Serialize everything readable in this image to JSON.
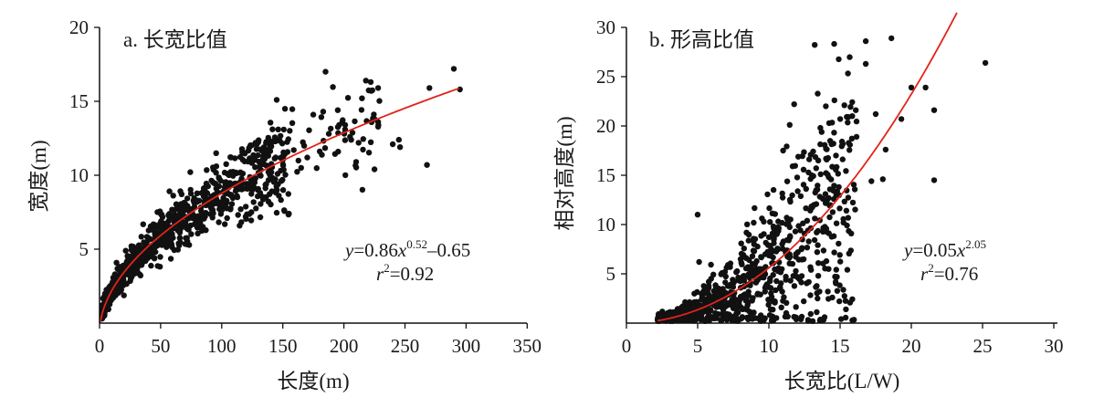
{
  "chart_data": [
    {
      "type": "scatter",
      "title": "a. 长宽比值",
      "xlabel": "长度(m)",
      "ylabel": "宽度(m)",
      "xlim": [
        0,
        350
      ],
      "ylim": [
        0,
        20
      ],
      "xticks": [
        "0",
        "50",
        "100",
        "150",
        "200",
        "250",
        "300",
        "350"
      ],
      "yticks": [
        "5",
        "10",
        "15",
        "20"
      ],
      "fit": {
        "a": 0.86,
        "b": 0.52,
        "c": -0.65,
        "equation": "y=0.86x^0.52−0.65",
        "r2": "r²=0.92"
      },
      "equation_parts": {
        "var": "y",
        "eq": "=0.86",
        "x": "x",
        "exp": "0.52",
        "tail": "–0.65"
      },
      "r2_parts": {
        "var": "r",
        "exp": "2",
        "val": "=0.92"
      },
      "point_count": 900,
      "outliers": [
        [
          185,
          17.0
        ],
        [
          218,
          16.4
        ],
        [
          228,
          15.9
        ],
        [
          222,
          16.3
        ],
        [
          290,
          17.2
        ],
        [
          295,
          15.8
        ],
        [
          270,
          15.9
        ],
        [
          268,
          10.7
        ],
        [
          245,
          12.4
        ],
        [
          246,
          11.9
        ],
        [
          225,
          10.4
        ],
        [
          205,
          12.6
        ],
        [
          201,
          13.1
        ],
        [
          195,
          14.4
        ],
        [
          175,
          14.1
        ],
        [
          183,
          14.3
        ],
        [
          210,
          10.9
        ],
        [
          145,
          15.1
        ],
        [
          155,
          7.4
        ],
        [
          165,
          10.5
        ],
        [
          170,
          11.2
        ],
        [
          225,
          13.8
        ],
        [
          228,
          13.6
        ],
        [
          240,
          12.1
        ],
        [
          212,
          12.2
        ]
      ]
    },
    {
      "type": "scatter",
      "title": "b. 形高比值",
      "xlabel": "长宽比(L/W)",
      "ylabel": "相对高度(m)",
      "xlim": [
        0,
        30
      ],
      "ylim": [
        0,
        30
      ],
      "xticks": [
        "0",
        "5",
        "10",
        "15",
        "20",
        "25",
        "30"
      ],
      "yticks": [
        "5",
        "10",
        "15",
        "20",
        "25",
        "30"
      ],
      "fit": {
        "a": 0.05,
        "b": 2.05,
        "equation": "y=0.05x^2.05",
        "r2": "r²=0.76"
      },
      "equation_parts": {
        "var": "y",
        "eq": "=0.05",
        "x": "x",
        "exp": "2.05"
      },
      "r2_parts": {
        "var": "r",
        "exp": "2",
        "val": "=0.76"
      },
      "point_count": 900,
      "outliers": [
        [
          16.8,
          28.6
        ],
        [
          18.6,
          28.9
        ],
        [
          16.8,
          26.3
        ],
        [
          25.2,
          26.4
        ],
        [
          20.0,
          23.9
        ],
        [
          21.0,
          23.9
        ],
        [
          19.3,
          20.7
        ],
        [
          21.6,
          21.6
        ],
        [
          21.6,
          14.5
        ],
        [
          17.5,
          21.2
        ],
        [
          18.2,
          17.6
        ],
        [
          16.1,
          21.6
        ],
        [
          15.3,
          22.1
        ],
        [
          14.6,
          22.6
        ],
        [
          14.0,
          22.0
        ],
        [
          5.0,
          11.0
        ],
        [
          5.1,
          6.2
        ],
        [
          11.0,
          17.5
        ],
        [
          18.0,
          14.6
        ],
        [
          17.2,
          14.4
        ]
      ]
    }
  ]
}
